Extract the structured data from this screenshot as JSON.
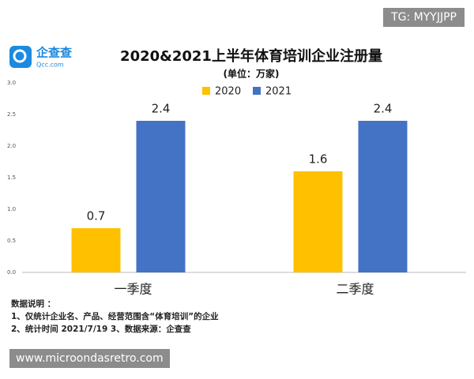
{
  "logo": {
    "name": "企查查",
    "domain": "Qcc.com"
  },
  "watermark_top": "TG: MYYJJPP",
  "watermark_bottom": "www.microondasretro.com",
  "notes": [
    "数据说明 ：",
    "1、仅统计企业名、产品、经营范围含“体育培训”的企业",
    "2、统计时间  2021/7/19     3、数据来源：企查查"
  ],
  "chart_data": {
    "type": "bar",
    "title": "2020&2021上半年体育培训企业注册量",
    "subtitle": "(单位：万家)",
    "categories": [
      "一季度",
      "二季度"
    ],
    "series": [
      {
        "name": "2020",
        "color": "#ffc000",
        "values": [
          0.7,
          1.6
        ]
      },
      {
        "name": "2021",
        "color": "#4472c4",
        "values": [
          2.4,
          2.4
        ]
      }
    ],
    "ylim": [
      0,
      3
    ],
    "yticks": [
      {
        "value": 0,
        "label": "0.0"
      },
      {
        "value": 0.5,
        "label": "0.5"
      },
      {
        "value": 1,
        "label": "1.0"
      },
      {
        "value": 1.5,
        "label": "1.5"
      },
      {
        "value": 2,
        "label": "2.0"
      },
      {
        "value": 2.5,
        "label": "2.5"
      },
      {
        "value": 3,
        "label": "3.0"
      }
    ],
    "grid": false
  }
}
